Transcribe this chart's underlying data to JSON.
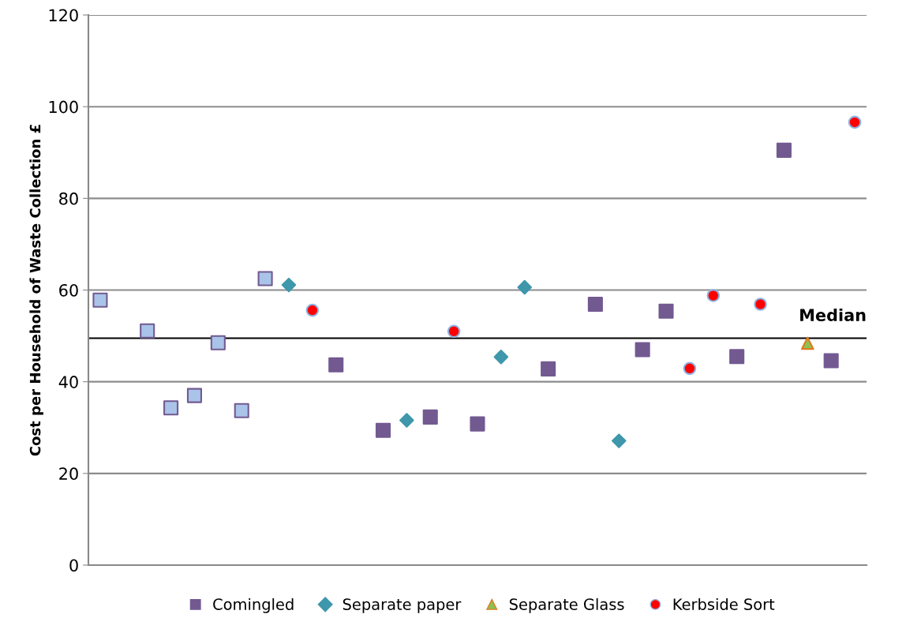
{
  "chart_data": {
    "type": "scatter",
    "ylabel": "Cost per Household of Waste Collection £",
    "categories": [
      null,
      null,
      null,
      null,
      null,
      null,
      null,
      null,
      null,
      null,
      null,
      null,
      null,
      null,
      null,
      null,
      null,
      null,
      null,
      null,
      null,
      null,
      null,
      null,
      null,
      null,
      null,
      null,
      null,
      null,
      null,
      null,
      null
    ],
    "ylim": [
      0,
      120
    ],
    "yticks": [
      0,
      20,
      40,
      60,
      80,
      100,
      120
    ],
    "grid": "y",
    "legend": "bottom",
    "series": [
      {
        "name": "Comingled",
        "color": "#725a91",
        "marker": "square",
        "values": [
          57.8,
          null,
          51.1,
          34.3,
          37.0,
          48.5,
          33.7,
          62.5,
          null,
          null,
          43.7,
          null,
          29.4,
          null,
          32.3,
          null,
          30.8,
          null,
          null,
          42.8,
          null,
          56.9,
          null,
          47.0,
          55.4,
          null,
          null,
          45.5,
          null,
          90.5,
          null,
          44.6,
          null
        ],
        "colors": [
          "#a9c4e8",
          null,
          "#a9c4e8",
          "#a9c4e8",
          "#a9c4e8",
          "#a9c4e8",
          "#a9c4e8",
          "#a9c4e8",
          null,
          null,
          "#725a91",
          null,
          "#725a91",
          null,
          "#725a91",
          null,
          "#725a91",
          null,
          null,
          "#725a91",
          null,
          "#725a91",
          null,
          "#725a91",
          "#725a91",
          null,
          null,
          "#725a91",
          null,
          "#725a91",
          null,
          "#725a91",
          null
        ]
      },
      {
        "name": "Separate paper",
        "color": "#3e97ab",
        "marker": "diamond",
        "values": [
          null,
          null,
          null,
          null,
          null,
          null,
          null,
          null,
          61.1,
          null,
          null,
          null,
          null,
          31.6,
          null,
          null,
          null,
          45.4,
          60.6,
          null,
          null,
          null,
          27.1,
          null,
          null,
          null,
          null,
          null,
          null,
          null,
          null,
          null,
          null
        ]
      },
      {
        "name": "Separate Glass",
        "color": "#8cc152",
        "marker": "triangle",
        "values": [
          null,
          null,
          null,
          null,
          null,
          null,
          null,
          null,
          null,
          null,
          null,
          null,
          null,
          null,
          null,
          null,
          null,
          null,
          null,
          null,
          null,
          null,
          null,
          null,
          null,
          null,
          null,
          null,
          null,
          null,
          48.4,
          null,
          null
        ]
      },
      {
        "name": "Kerbside Sort",
        "color": "#ff0000",
        "marker": "circle",
        "values": [
          null,
          null,
          null,
          null,
          null,
          null,
          null,
          null,
          null,
          55.6,
          null,
          null,
          null,
          null,
          null,
          51.0,
          null,
          null,
          null,
          null,
          null,
          null,
          null,
          null,
          null,
          42.9,
          58.8,
          null,
          56.9,
          null,
          null,
          null,
          96.6
        ]
      }
    ],
    "ref_lines": [
      {
        "axis": "y",
        "value": 49.5,
        "label": "Median",
        "color": "#000000"
      }
    ]
  }
}
